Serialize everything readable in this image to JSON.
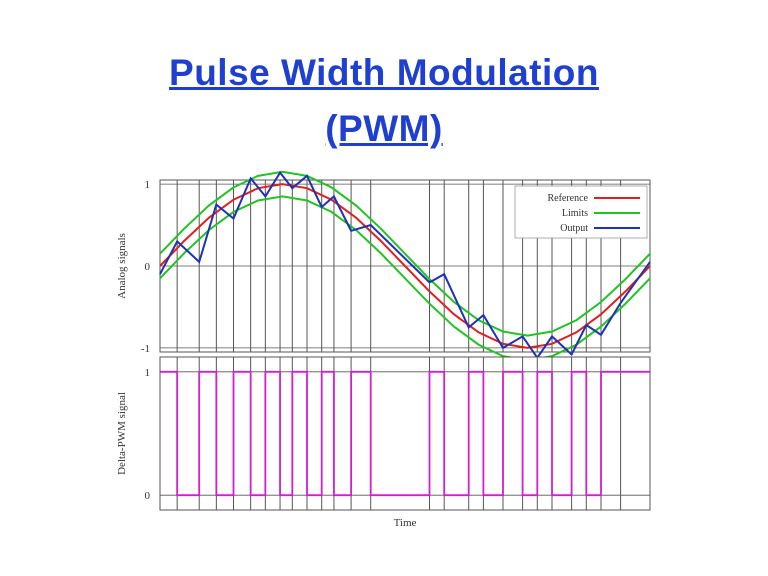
{
  "page": {
    "title_line1": "Pulse Width Modulation",
    "title_line2": "(PWM)"
  },
  "colors": {
    "title": "#1f3fd0",
    "reference": "#e0201e",
    "limits": "#22c322",
    "output": "#1f32b4",
    "pwm": "#d21ed2",
    "grid": "#555555"
  },
  "chart_data": [
    {
      "type": "line",
      "title": "",
      "xlabel": "",
      "ylabel": "Analog signals",
      "ylim": [
        -1.05,
        1.05
      ],
      "yticks": [
        "1",
        "0",
        "-1"
      ],
      "grid": true,
      "legend": "top-right",
      "x": [
        0,
        0.05,
        0.1,
        0.15,
        0.2,
        0.25,
        0.3,
        0.35,
        0.4,
        0.45,
        0.5,
        0.55,
        0.6,
        0.65,
        0.7,
        0.75,
        0.8,
        0.85,
        0.9,
        0.95,
        1.0
      ],
      "series": [
        {
          "name": "Reference",
          "values": [
            0,
            0.31,
            0.59,
            0.81,
            0.95,
            1.0,
            0.95,
            0.81,
            0.59,
            0.31,
            0,
            -0.31,
            -0.59,
            -0.81,
            -0.95,
            -1.0,
            -0.95,
            -0.81,
            -0.59,
            -0.31,
            0
          ]
        },
        {
          "name": "Limits",
          "values": [
            0.15,
            0.46,
            0.74,
            0.96,
            1.1,
            1.15,
            1.1,
            0.96,
            0.74,
            0.46,
            0.15,
            -0.16,
            -0.44,
            -0.66,
            -0.8,
            -0.85,
            -0.8,
            -0.66,
            -0.44,
            -0.16,
            0.15
          ]
        },
        {
          "name": "Limits",
          "values": [
            -0.15,
            0.16,
            0.44,
            0.66,
            0.8,
            0.85,
            0.8,
            0.66,
            0.44,
            0.16,
            -0.15,
            -0.46,
            -0.74,
            -0.96,
            -1.1,
            -1.15,
            -1.1,
            -0.96,
            -0.74,
            -0.46,
            -0.15
          ]
        },
        {
          "name": "Output",
          "x": [
            0,
            0.035,
            0.08,
            0.115,
            0.15,
            0.185,
            0.215,
            0.245,
            0.27,
            0.3,
            0.33,
            0.355,
            0.39,
            0.43,
            0.55,
            0.58,
            0.63,
            0.66,
            0.7,
            0.74,
            0.77,
            0.8,
            0.84,
            0.87,
            0.9,
            0.94,
            1.0
          ],
          "values": [
            -0.1,
            0.3,
            0.05,
            0.75,
            0.58,
            1.07,
            0.85,
            1.14,
            0.95,
            1.1,
            0.72,
            0.85,
            0.43,
            0.5,
            -0.2,
            -0.1,
            -0.75,
            -0.6,
            -1.0,
            -0.86,
            -1.12,
            -0.86,
            -1.08,
            -0.72,
            -0.84,
            -0.45,
            0.05
          ]
        }
      ]
    },
    {
      "type": "line",
      "title": "",
      "xlabel": "Time",
      "ylabel": "Delta-PWM signal",
      "ylim": [
        -0.12,
        1.12
      ],
      "yticks": [
        "1",
        "0"
      ],
      "grid": true,
      "series": [
        {
          "name": "",
          "x": [
            0,
            0.035,
            0.08,
            0.115,
            0.15,
            0.185,
            0.215,
            0.245,
            0.27,
            0.3,
            0.33,
            0.355,
            0.39,
            0.43,
            0.55,
            0.58,
            0.63,
            0.66,
            0.7,
            0.74,
            0.77,
            0.8,
            0.84,
            0.87,
            0.9,
            0.94,
            1.0
          ],
          "values": [
            1,
            0,
            1,
            0,
            1,
            0,
            1,
            0,
            1,
            0,
            1,
            0,
            1,
            0,
            1,
            0,
            1,
            0,
            1,
            0,
            1,
            0,
            1,
            0,
            1,
            1,
            1
          ]
        }
      ]
    }
  ]
}
